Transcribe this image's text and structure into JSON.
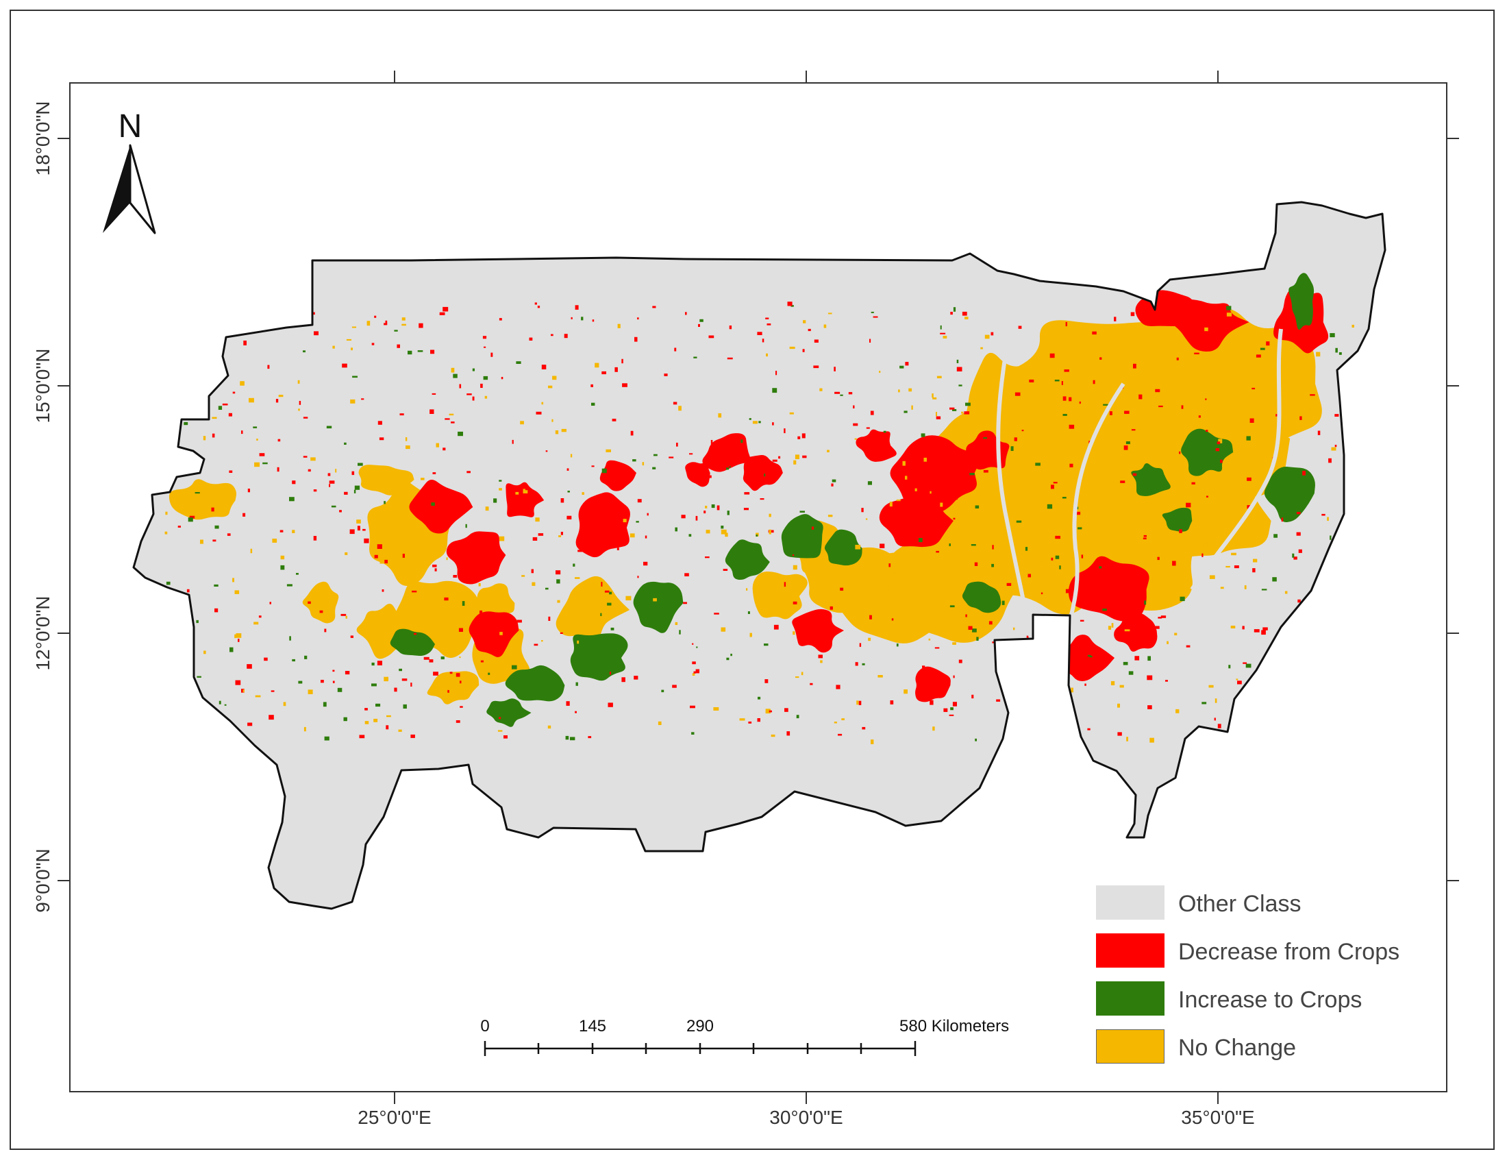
{
  "map": {
    "north_label": "N",
    "latitude_labels": [
      "18°0'0\"N",
      "15°0'0\"N",
      "12°0'0\"N",
      "9°0'0\"N"
    ],
    "longitude_labels": [
      "25°0'0\"E",
      "30°0'0\"E",
      "35°0'0\"E"
    ],
    "colors": {
      "other": "#e0e0e0",
      "decrease": "#ff0000",
      "increase": "#2e7d0c",
      "no_change": "#f5b700",
      "outline": "#111111"
    }
  },
  "legend": {
    "items": [
      {
        "label": "Other Class",
        "color": "#e0e0e0"
      },
      {
        "label": "Decrease from Crops",
        "color": "#ff0000"
      },
      {
        "label": "Increase to Crops",
        "color": "#2e7d0c"
      },
      {
        "label": "No Change",
        "color": "#f5b700"
      }
    ]
  },
  "scale_bar": {
    "tick_0": "0",
    "tick_1": "145",
    "tick_2": "290",
    "tick_3": "580 Kilometers"
  }
}
